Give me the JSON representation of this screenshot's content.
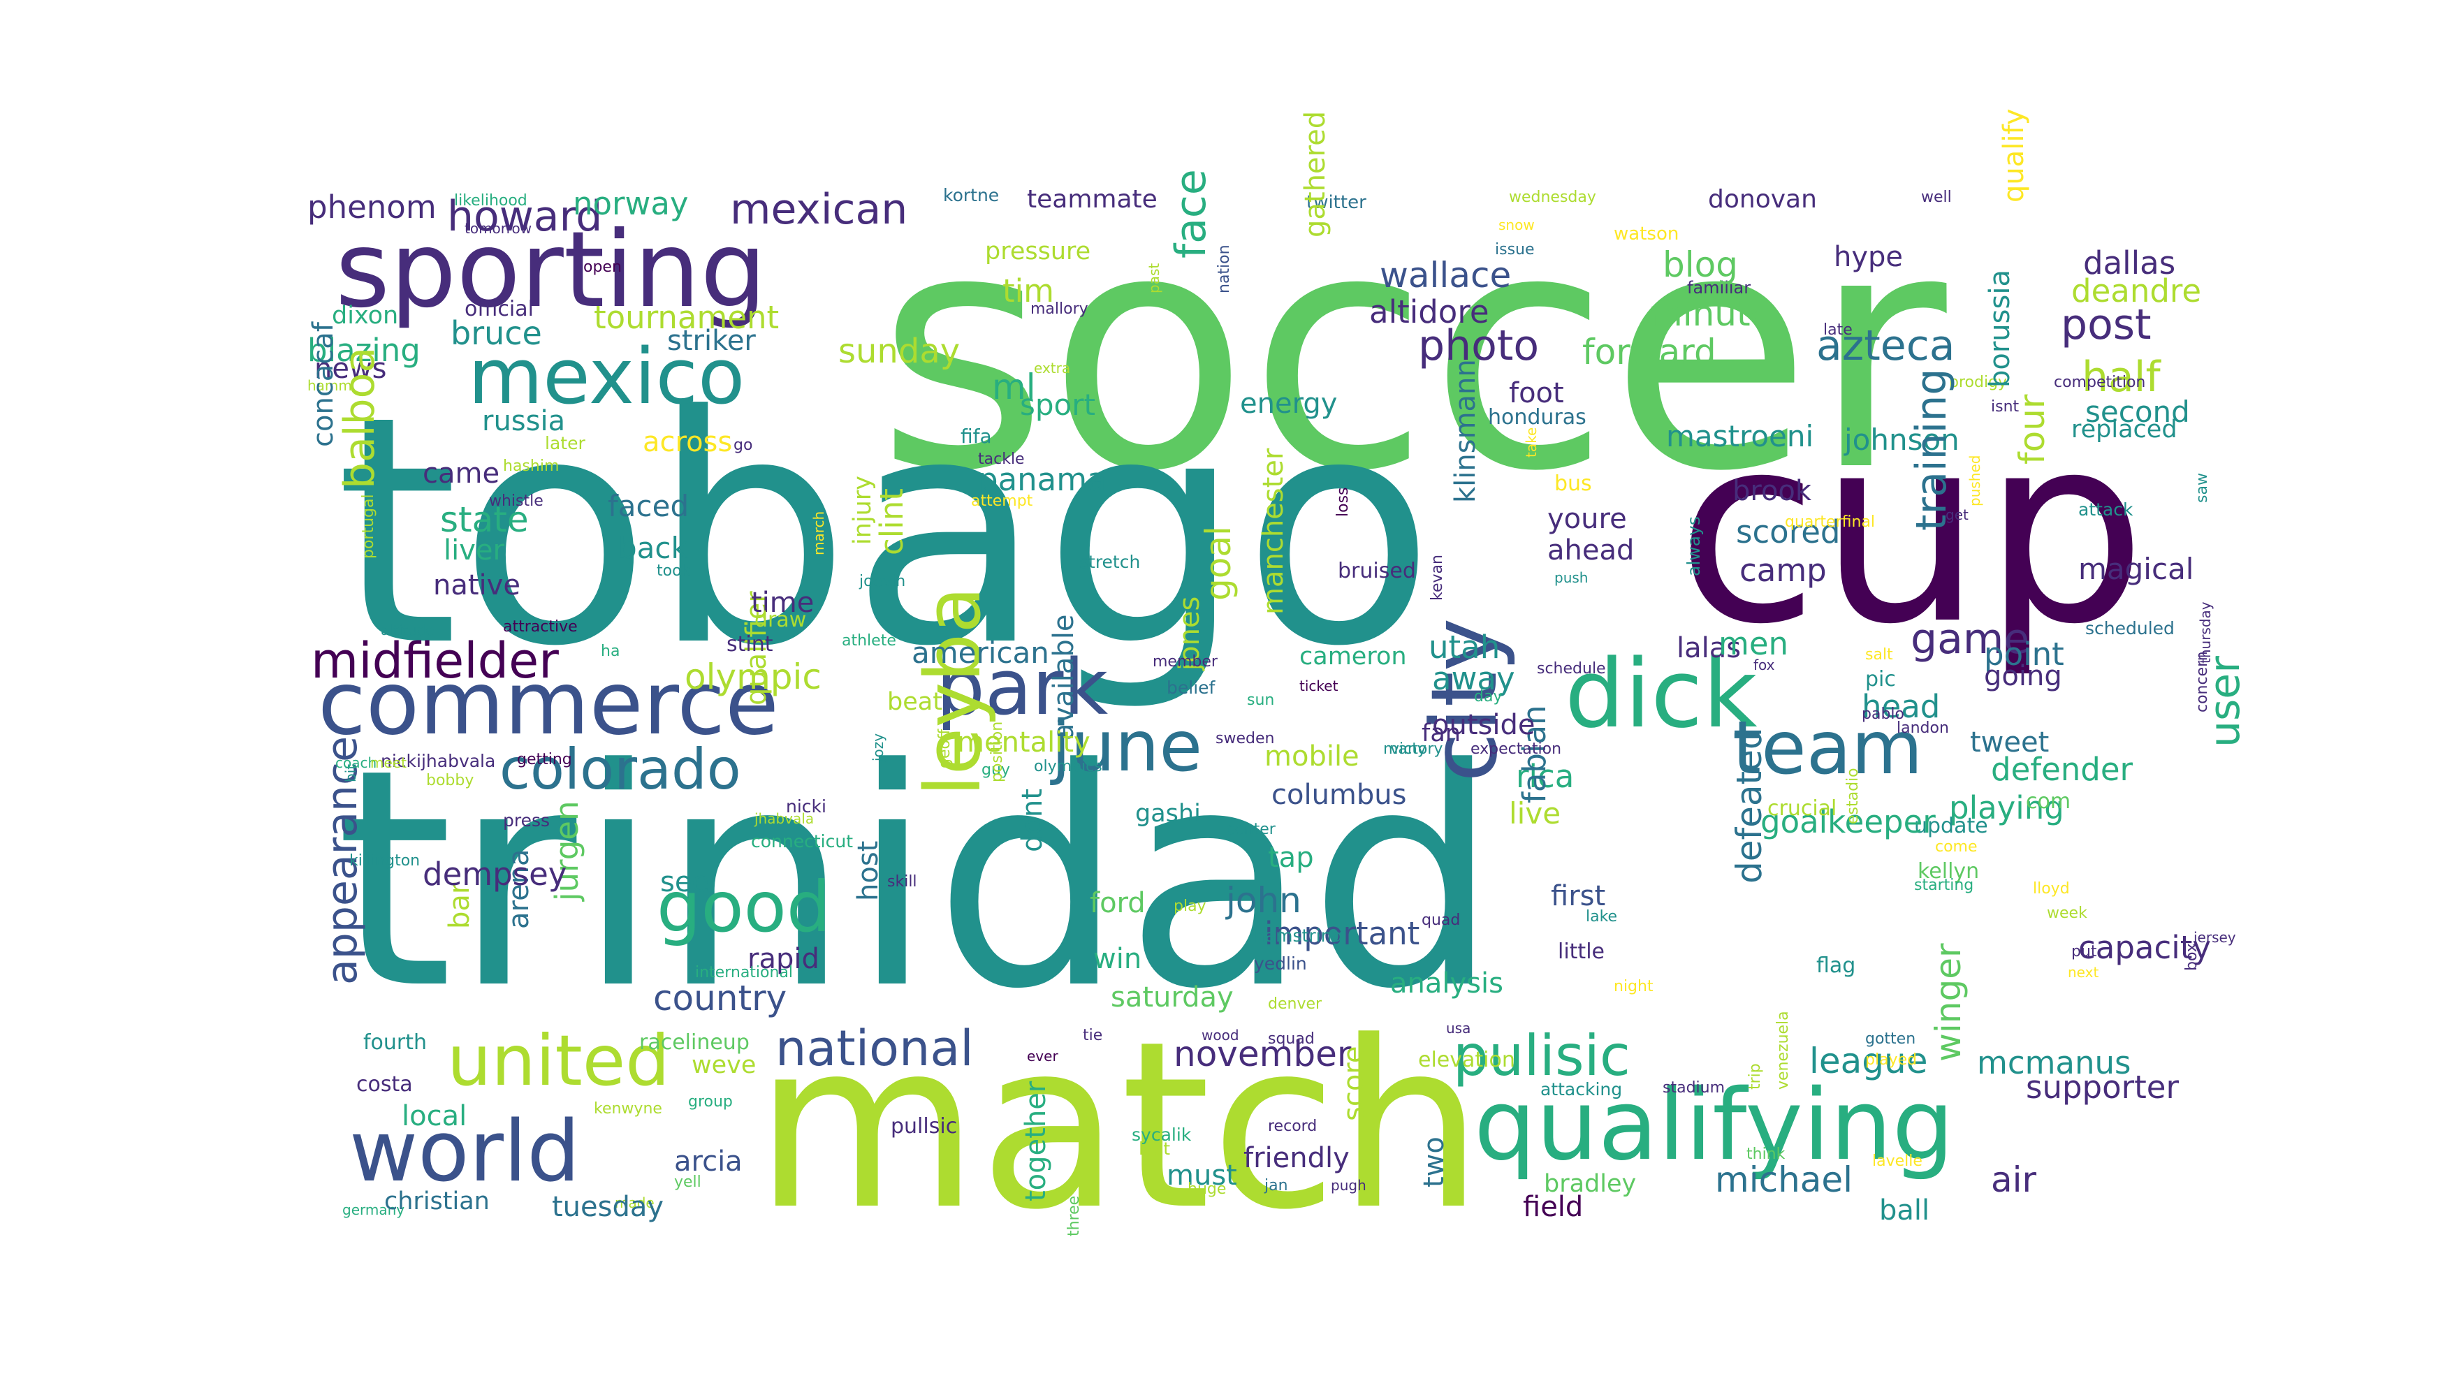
{
  "palette": {
    "dark_purple": "#440154",
    "indigo": "#472d7b",
    "blue": "#3b528b",
    "steel": "#2c728e",
    "teal": "#21918c",
    "sea": "#28ae80",
    "green": "#5ec962",
    "lime": "#addc30",
    "yellow": "#fde725",
    "background": "#ffffff"
  },
  "words": [
    "soccer",
    "tobago",
    "trinidad",
    "cup",
    "match",
    "sporting",
    "mexico",
    "commerce",
    "park",
    "dick",
    "qualifying",
    "team",
    "united",
    "world",
    "good",
    "colorado",
    "city",
    "june",
    "leyba",
    "midfielder",
    "national",
    "pulisic",
    "mexican",
    "howard",
    "phenom",
    "norway",
    "teammate",
    "kortne",
    "likelihood",
    "tomorrow",
    "twitter",
    "wednesday",
    "donovan",
    "well",
    "watson",
    "snow",
    "issue",
    "familiar",
    "hype",
    "qualify",
    "dallas",
    "deandre",
    "post",
    "half",
    "second",
    "official",
    "open",
    "dixon",
    "blazing",
    "news",
    "hamm",
    "concacaf",
    "bruce",
    "tournament",
    "striker",
    "pressure",
    "tim",
    "ml",
    "sunday",
    "face",
    "nation",
    "mallory",
    "past",
    "extra",
    "gathered",
    "altidore",
    "photo",
    "wallace",
    "blog",
    "minute",
    "forward",
    "azteca",
    "late",
    "competition",
    "prodigy",
    "isnt",
    "replaced",
    "borussia",
    "russia",
    "state",
    "liver",
    "native",
    "came",
    "hashim",
    "whistle",
    "portugal",
    "balboa",
    "across",
    "later",
    "go",
    "qualifier",
    "faced",
    "back",
    "panama",
    "fifa",
    "tackle",
    "attempt",
    "injury",
    "clint",
    "joevin",
    "stretch",
    "sport",
    "energy",
    "goal",
    "jones",
    "manchester",
    "klinsmann",
    "kevan",
    "loss",
    "march",
    "take",
    "honduras",
    "mastroeni",
    "johnson",
    "training",
    "four",
    "brook",
    "scored",
    "camp",
    "foot",
    "youre",
    "ahead",
    "bus",
    "magical",
    "attack",
    "saw",
    "get",
    "pushed",
    "quarterfinal",
    "always",
    "push",
    "took",
    "time",
    "draw",
    "stint",
    "athlete",
    "attractive",
    "ha",
    "altitude",
    "american",
    "olympic",
    "available",
    "member",
    "belief",
    "ticket",
    "cameron",
    "utah",
    "away",
    "fan",
    "bruised",
    "game",
    "lalas",
    "men",
    "point",
    "going",
    "pic",
    "salt",
    "scheduled",
    "fox",
    "thursday",
    "head",
    "schedule",
    "day",
    "pablo",
    "concern",
    "landon",
    "tweet",
    "defender",
    "user",
    "playing",
    "com",
    "update",
    "come",
    "kellyn",
    "starting",
    "lloyd",
    "week",
    "capacity",
    "put",
    "jersey",
    "box",
    "next",
    "flag",
    "night",
    "little",
    "lake",
    "quad",
    "first",
    "goalkeeper",
    "defeated",
    "crucial",
    "estadio",
    "live",
    "rica",
    "fabian",
    "outside",
    "many",
    "victory",
    "expectation",
    "sweden",
    "sun",
    "beat",
    "mentality",
    "geoff",
    "guy",
    "olympics",
    "position",
    "jozy",
    "mobile",
    "columbus",
    "gashi",
    "center",
    "tap",
    "john",
    "important",
    "hamstring",
    "yedlin",
    "analysis",
    "see",
    "rapid",
    "country",
    "host",
    "skill",
    "connecticut",
    "dont",
    "ford",
    "play",
    "win",
    "saturday",
    "arena",
    "jurgen",
    "bar",
    "dempsey",
    "appearance",
    "nickijhabvala",
    "getting",
    "bobby",
    "nicki",
    "press",
    "jhabvala",
    "bit",
    "coach",
    "meet",
    "killington",
    "international",
    "fourth",
    "racelineup",
    "tie",
    "ever",
    "wood",
    "squad",
    "denver",
    "november",
    "usa",
    "league",
    "gotten",
    "played",
    "trip",
    "venezuela",
    "mcmanus",
    "supporter",
    "winger",
    "costa",
    "local",
    "weve",
    "kenwyne",
    "group",
    "arcia",
    "made",
    "yell",
    "germany",
    "christian",
    "tuesday",
    "pullsic",
    "together",
    "three",
    "sycalik",
    "last",
    "must",
    "huge",
    "record",
    "jan",
    "pugh",
    "friendly",
    "score",
    "two",
    "elevation",
    "attacking",
    "stadium",
    "bradley",
    "michael",
    "field",
    "ball",
    "air",
    "think",
    "lavelle"
  ]
}
